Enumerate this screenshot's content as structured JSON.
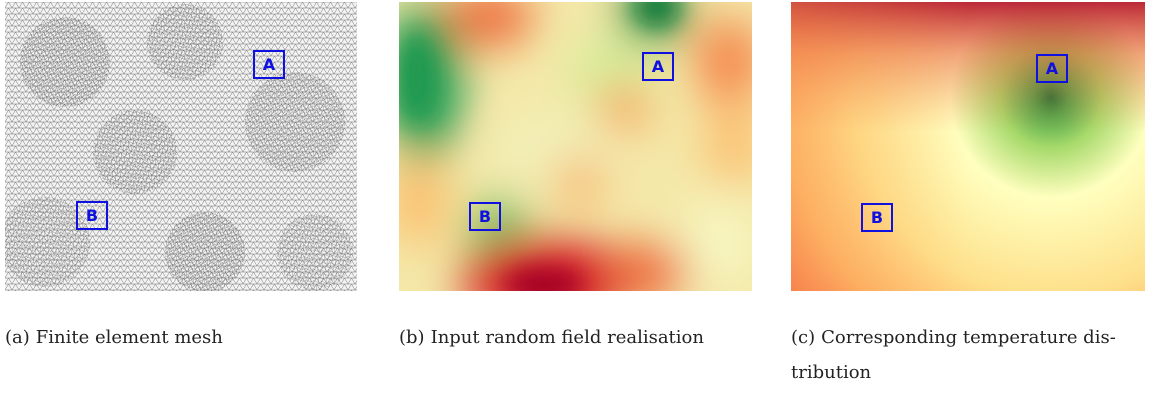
{
  "figure": {
    "panels": [
      {
        "id": "a",
        "label": "(a)",
        "caption": "Finite element mesh",
        "markers": [
          "A",
          "B"
        ]
      },
      {
        "id": "b",
        "label": "(b)",
        "caption": "Input random field realisation",
        "markers": [
          "A",
          "B"
        ]
      },
      {
        "id": "c",
        "label": "(c)",
        "caption": "Corresponding temperature distribution",
        "caption_line1": "Corresponding temperature dis-",
        "caption_line2": "tribution",
        "markers": [
          "A",
          "B"
        ]
      }
    ],
    "colors": {
      "marker": "#1010e0",
      "mesh_line": "#666666",
      "field_red": "#a50026",
      "field_orange": "#f07c4a",
      "field_yellow": "#ffffbf",
      "field_green": "#1a9850"
    }
  }
}
